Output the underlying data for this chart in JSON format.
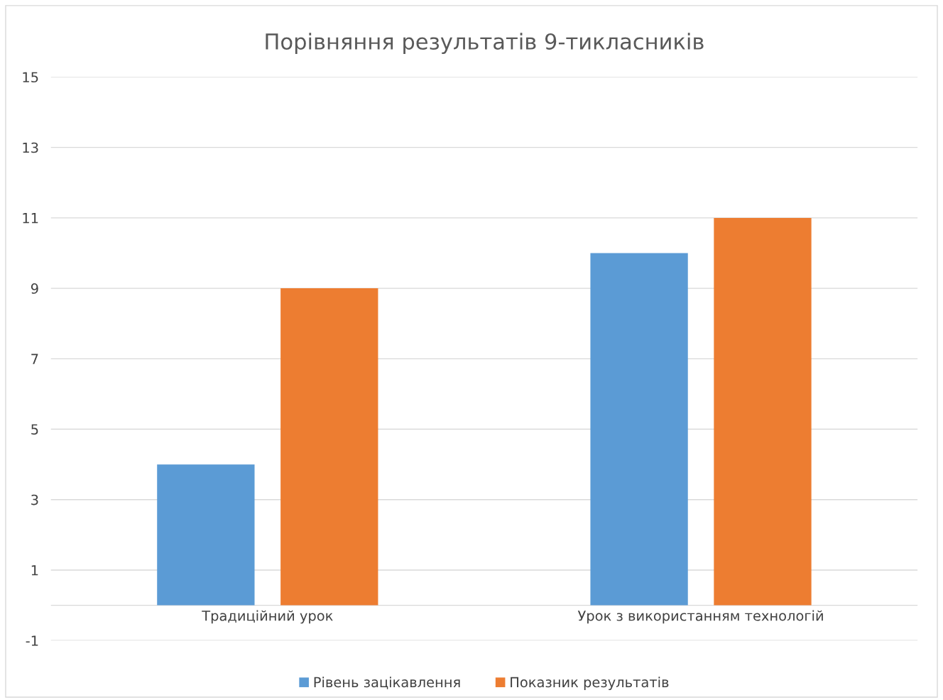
{
  "chart_data": {
    "type": "bar",
    "title": "Порівняння результатів 9-тикласників",
    "categories": [
      "Традиційний урок",
      "Урок з використанням технологій"
    ],
    "series": [
      {
        "name": "Рівень зацікавлення",
        "color": "#5b9bd5",
        "values": [
          4,
          10
        ]
      },
      {
        "name": "Показник результатів",
        "color": "#ed7d31",
        "values": [
          9,
          11
        ]
      }
    ],
    "ylim": [
      -1,
      15
    ],
    "yticks": [
      -1,
      1,
      3,
      5,
      7,
      9,
      11,
      13,
      15
    ],
    "grid": "y",
    "legend": "bottom"
  }
}
